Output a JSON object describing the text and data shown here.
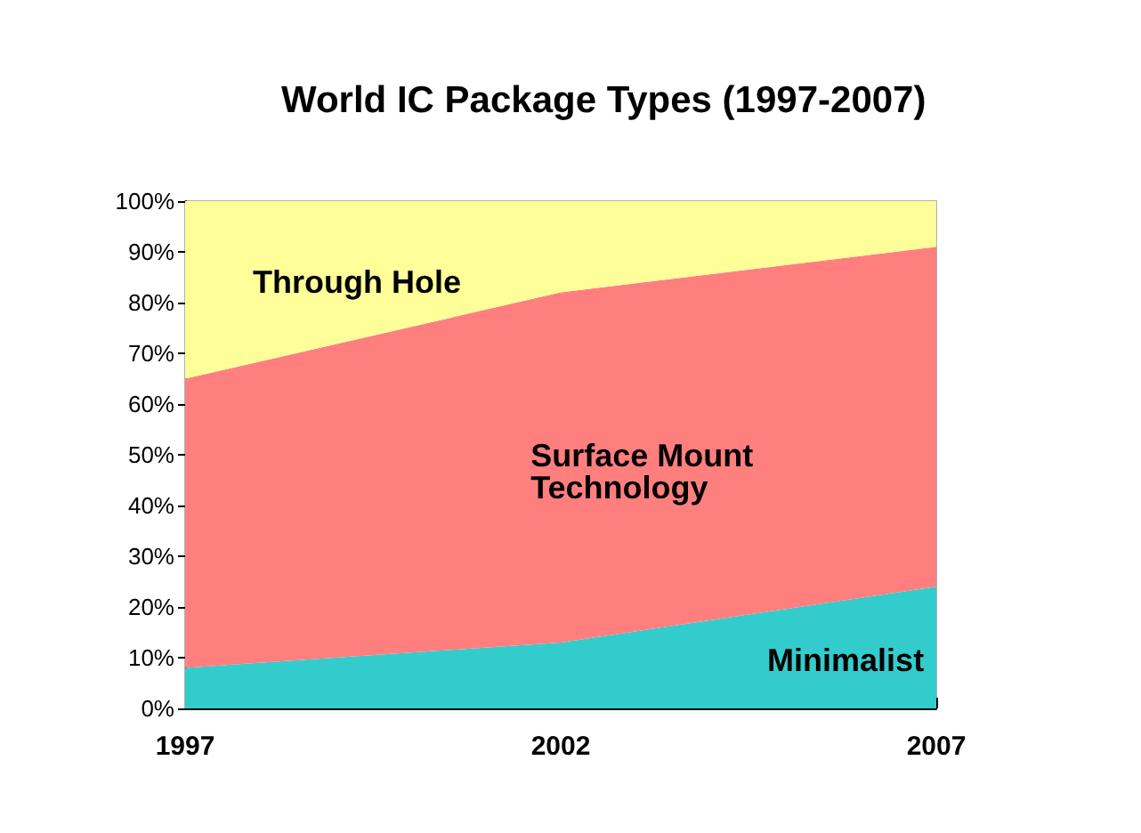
{
  "chart_data": {
    "type": "area",
    "title": "World IC Package Types (1997-2007)",
    "stacked": true,
    "categories": [
      "1997",
      "2002",
      "2007"
    ],
    "series": [
      {
        "name": "Minimalist",
        "color": "#33cccc",
        "values": [
          8,
          13,
          24
        ]
      },
      {
        "name": "Surface Mount Technology",
        "color": "#ff7f7f",
        "values": [
          57,
          69,
          67
        ]
      },
      {
        "name": "Through Hole",
        "color": "#ffff99",
        "values": [
          35,
          18,
          9
        ]
      }
    ],
    "ylim": [
      0,
      100
    ],
    "yticks": [
      {
        "value": 0,
        "label": "0%"
      },
      {
        "value": 10,
        "label": "10%"
      },
      {
        "value": 20,
        "label": "20%"
      },
      {
        "value": 30,
        "label": "30%"
      },
      {
        "value": 40,
        "label": "40%"
      },
      {
        "value": 50,
        "label": "50%"
      },
      {
        "value": 60,
        "label": "60%"
      },
      {
        "value": 70,
        "label": "70%"
      },
      {
        "value": 80,
        "label": "80%"
      },
      {
        "value": 90,
        "label": "90%"
      },
      {
        "value": 100,
        "label": "100%"
      }
    ],
    "grid": false,
    "legend": false
  }
}
